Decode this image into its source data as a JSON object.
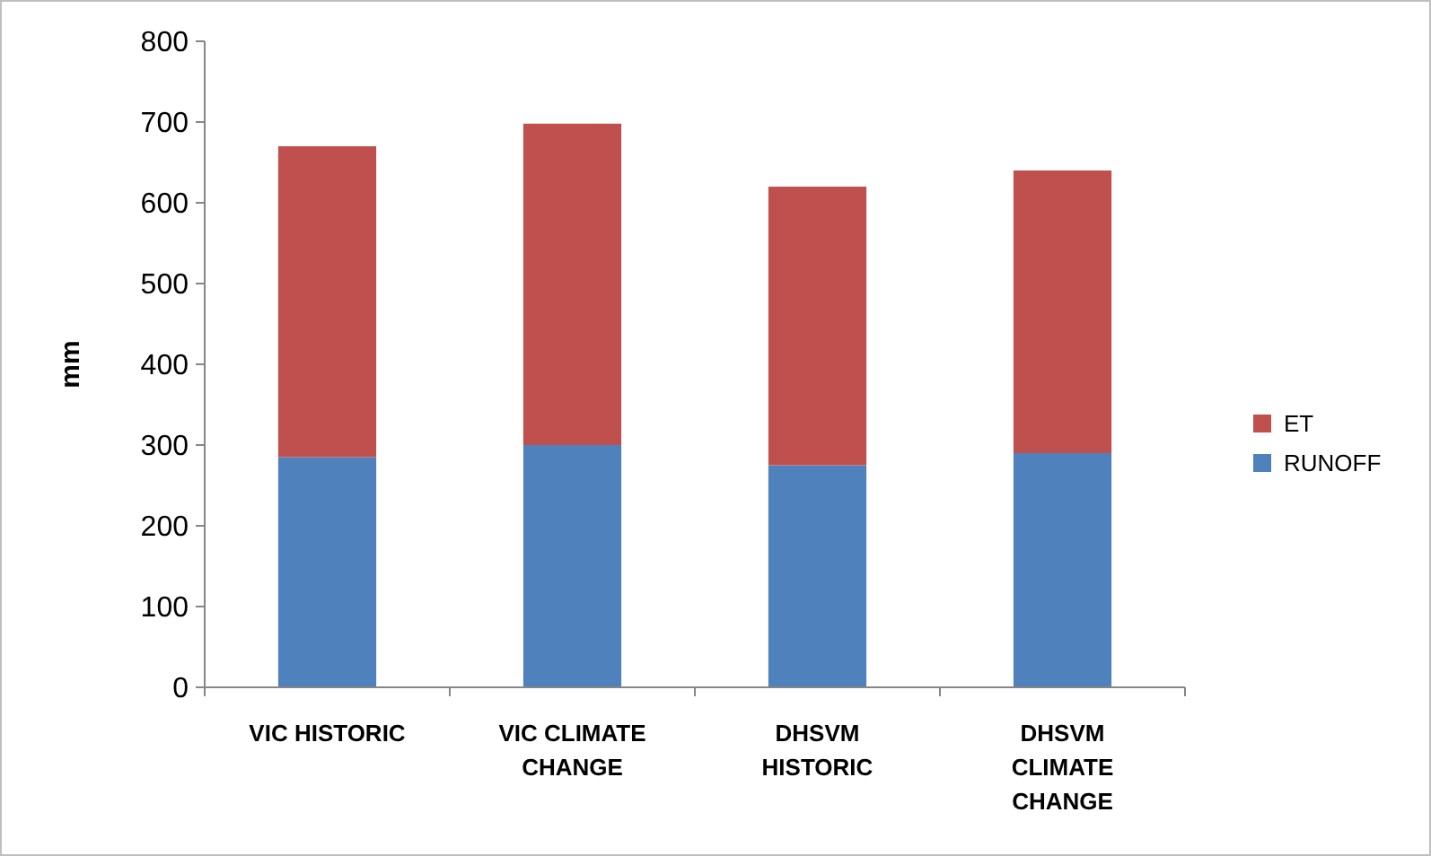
{
  "chart_data": {
    "type": "bar",
    "stacked": true,
    "ylabel": "mm",
    "categories": [
      "VIC HISTORIC",
      "VIC CLIMATE CHANGE",
      "DHSVM HISTORIC",
      "DHSVM CLIMATE CHANGE"
    ],
    "series": [
      {
        "name": "RUNOFF",
        "color": "#4f81bd",
        "values": [
          285,
          300,
          275,
          290
        ]
      },
      {
        "name": "ET",
        "color": "#c0504d",
        "values": [
          385,
          398,
          345,
          350
        ]
      }
    ],
    "ylim": [
      0,
      800
    ],
    "yticks": [
      0,
      100,
      200,
      300,
      400,
      500,
      600,
      700,
      800
    ],
    "grid": false,
    "legend": "right"
  }
}
